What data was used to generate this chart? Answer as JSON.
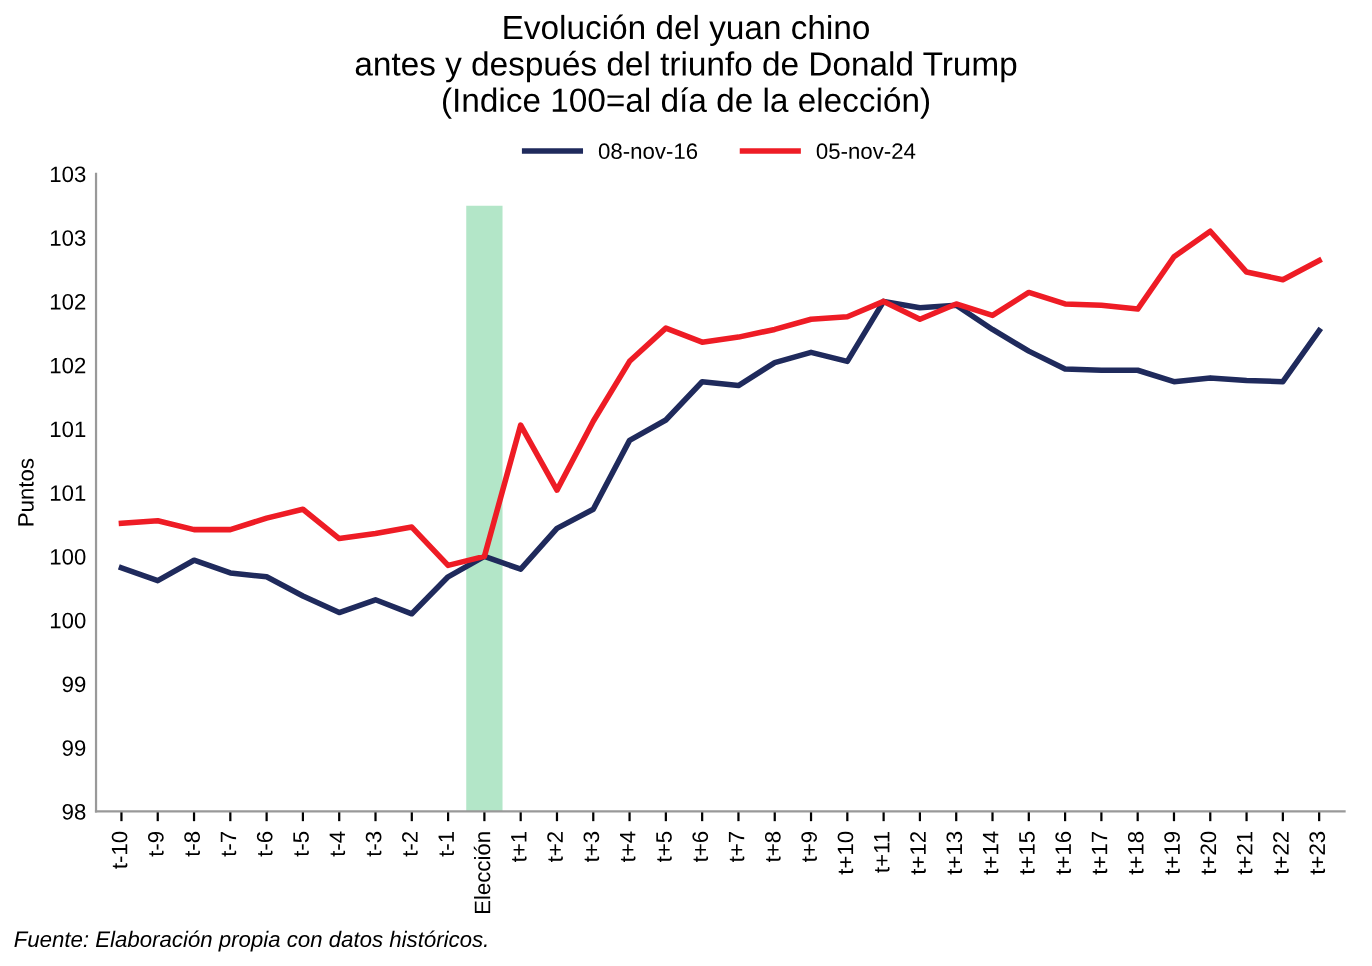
{
  "chart_data": {
    "type": "line",
    "title": "Evolución del yuan chino\nantes y después del triunfo de Donald Trump\n(Indice 100=al día de la elección)",
    "ylabel": "Puntos",
    "categories": [
      "t-10",
      "t-9",
      "t-8",
      "t-7",
      "t-6",
      "t-5",
      "t-4",
      "t-3",
      "t-2",
      "t-1",
      "Elección",
      "t+1",
      "t+2",
      "t+3",
      "t+4",
      "t+5",
      "t+6",
      "t+7",
      "t+8",
      "t+9",
      "t+10",
      "t+11",
      "t+12",
      "t+13",
      "t+14",
      "t+15",
      "t+16",
      "t+17",
      "t+18",
      "t+19",
      "t+20",
      "t+21",
      "t+22",
      "t+23"
    ],
    "series": [
      {
        "name": "08-nov-16",
        "color": "#1f2a5c",
        "values": [
          99.91,
          99.81,
          99.97,
          99.87,
          99.84,
          99.69,
          99.56,
          99.66,
          99.55,
          99.84,
          100.0,
          99.9,
          100.22,
          100.37,
          100.91,
          101.07,
          101.37,
          101.34,
          101.52,
          101.6,
          101.53,
          102.0,
          101.95,
          101.97,
          101.78,
          101.61,
          101.47,
          101.46,
          101.46,
          101.37,
          101.4,
          101.38,
          101.37,
          101.77
        ]
      },
      {
        "name": "05-nov-24",
        "color": "#ee1c25",
        "values": [
          100.26,
          100.28,
          100.21,
          100.21,
          100.3,
          100.37,
          100.14,
          100.18,
          100.23,
          99.93,
          100.0,
          101.03,
          100.52,
          101.06,
          101.53,
          101.79,
          101.68,
          101.72,
          101.78,
          101.86,
          101.88,
          102.0,
          101.86,
          101.98,
          101.89,
          102.07,
          101.98,
          101.97,
          101.94,
          102.35,
          102.55,
          102.23,
          102.17,
          102.32
        ]
      }
    ],
    "ylim": [
      98,
      103
    ],
    "yticks": [
      98,
      {
        "value": 98.5,
        "label": "99"
      },
      99,
      {
        "value": 99.5,
        "label": "100"
      },
      100,
      {
        "value": 100.5,
        "label": "101"
      },
      101,
      {
        "value": 101.5,
        "label": "102"
      },
      102,
      {
        "value": 102.5,
        "label": "103"
      },
      103
    ],
    "bands": [
      {
        "axis": "x",
        "from": "Elección",
        "to": "Elección",
        "color": "#b3e6c8"
      }
    ],
    "legend": "top",
    "grid": false,
    "line_style": "solid",
    "annotations": [
      "Fuente: Elaboración propia con datos históricos."
    ]
  }
}
